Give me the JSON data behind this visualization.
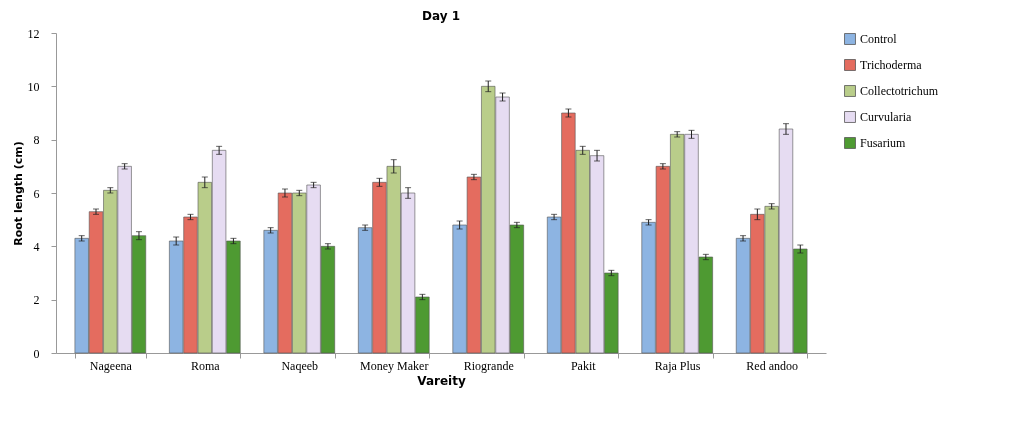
{
  "chart_data": {
    "type": "bar",
    "title": "Day 1",
    "xlabel": "Vareity",
    "ylabel": "Root length (cm)",
    "categories": [
      "Nageena",
      "Roma",
      "Naqeeb",
      "Money Maker",
      "Riogrande",
      "Pakit",
      "Raja Plus",
      "Red andoo"
    ],
    "series": [
      {
        "name": "Control",
        "color": "#8db4e2",
        "values": [
          4.3,
          4.2,
          4.6,
          4.7,
          4.8,
          5.1,
          4.9,
          4.3
        ],
        "errors": [
          0.1,
          0.15,
          0.1,
          0.1,
          0.15,
          0.1,
          0.1,
          0.1
        ]
      },
      {
        "name": "Trichoderma",
        "color": "#e46c5f",
        "values": [
          5.3,
          5.1,
          6.0,
          6.4,
          6.6,
          9.0,
          7.0,
          5.2
        ],
        "errors": [
          0.1,
          0.1,
          0.15,
          0.15,
          0.1,
          0.15,
          0.1,
          0.2
        ]
      },
      {
        "name": "Collectotrichum",
        "color": "#b9cd8a",
        "values": [
          6.1,
          6.4,
          6.0,
          7.0,
          10.0,
          7.6,
          8.2,
          5.5
        ],
        "errors": [
          0.1,
          0.2,
          0.1,
          0.25,
          0.2,
          0.15,
          0.1,
          0.1
        ]
      },
      {
        "name": "Curvularia",
        "color": "#e6dcf2",
        "values": [
          7.0,
          7.6,
          6.3,
          6.0,
          9.6,
          7.4,
          8.2,
          8.4
        ],
        "errors": [
          0.1,
          0.15,
          0.1,
          0.2,
          0.15,
          0.2,
          0.15,
          0.2
        ]
      },
      {
        "name": "Fusarium",
        "color": "#4e9a32",
        "values": [
          4.4,
          4.2,
          4.0,
          2.1,
          4.8,
          3.0,
          3.6,
          3.9
        ],
        "errors": [
          0.15,
          0.1,
          0.1,
          0.1,
          0.1,
          0.1,
          0.1,
          0.15
        ]
      }
    ],
    "ylim": [
      0,
      12
    ],
    "yticks": [
      0,
      2,
      4,
      6,
      8,
      10,
      12
    ],
    "grid": false,
    "legend": "right"
  }
}
